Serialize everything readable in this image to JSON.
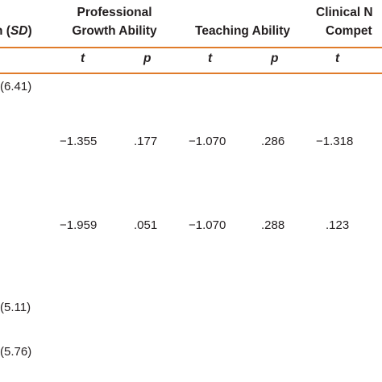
{
  "table": {
    "stub_header_prefix": "n (",
    "stub_header_italic": "SD",
    "stub_header_suffix": ")",
    "group_headers": {
      "professional_line1": "Professional",
      "professional_line2": "Growth Ability",
      "teaching": "Teaching Ability",
      "clinical_line1": "Clinical N",
      "clinical_line2": "Compet"
    },
    "subheaders": [
      "t",
      "p",
      "t",
      "p",
      "t"
    ],
    "stub_values": [
      "(6.41)",
      "(5.11)",
      "(5.76)"
    ],
    "rows": [
      {
        "pg_t": "−1.355",
        "pg_p": ".177",
        "ta_t": "−1.070",
        "ta_p": ".286",
        "cn_t": "−1.318"
      },
      {
        "pg_t": "−1.959",
        "pg_p": ".051",
        "ta_t": "−1.070",
        "ta_p": ".288",
        "cn_t": ".123"
      }
    ],
    "colors": {
      "rule": "#e07b2a",
      "text": "#231f20"
    }
  }
}
